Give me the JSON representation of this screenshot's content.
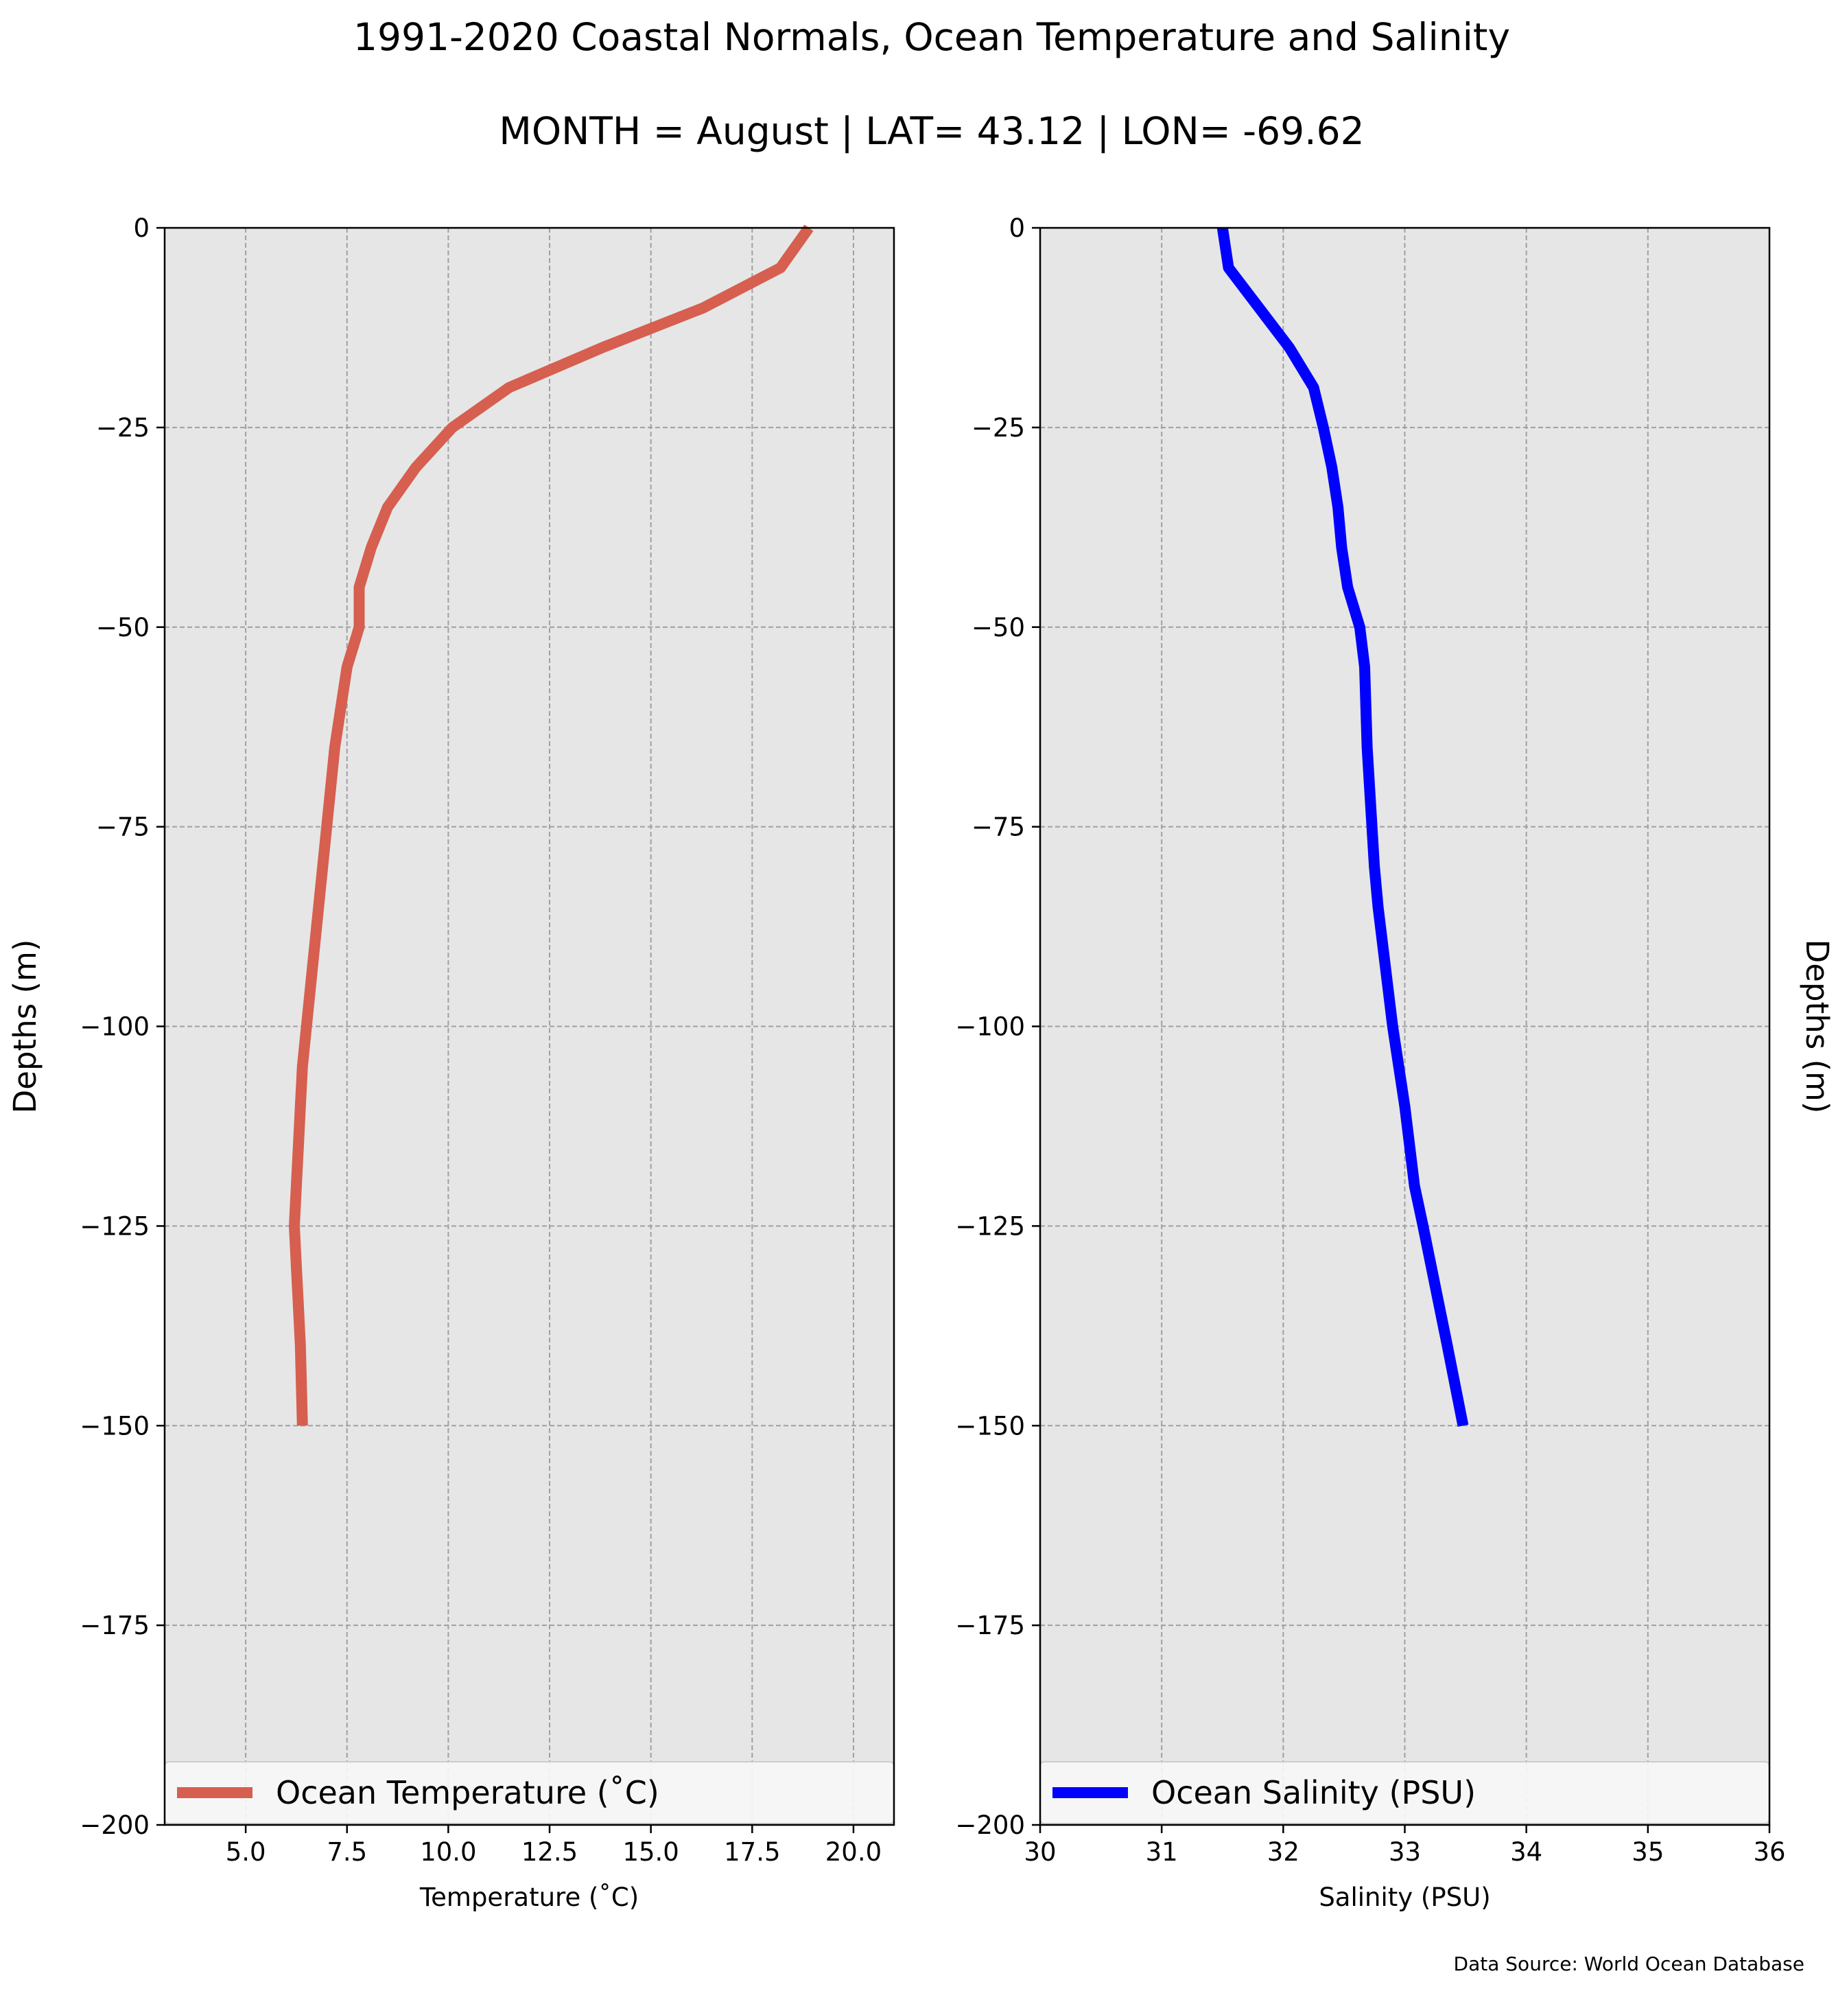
{
  "figure": {
    "title_line1": "1991-2020 Coastal Normals, Ocean Temperature and Salinity",
    "title_line2": "MONTH = August | LAT= 43.12 | LON= -69.62",
    "source_note": "Data Source: World Ocean Database"
  },
  "chart_data": [
    {
      "type": "line",
      "xlabel": "Temperature ($^\\circ$C)",
      "xlabel_display": "Temperature (˚C)",
      "ylabel": "Depths (m)",
      "xlim": [
        3,
        21
      ],
      "ylim": [
        -200,
        0
      ],
      "xticks": [
        5.0,
        7.5,
        10.0,
        12.5,
        15.0,
        17.5,
        20.0
      ],
      "xtick_labels": [
        "5.0",
        "7.5",
        "10.0",
        "12.5",
        "15.0",
        "17.5",
        "20.0"
      ],
      "yticks": [
        0,
        -25,
        -50,
        -75,
        -100,
        -125,
        -150,
        -175,
        -200
      ],
      "ytick_labels": [
        "0",
        "−25",
        "−50",
        "−75",
        "−100",
        "−125",
        "−150",
        "−175",
        "−200"
      ],
      "grid": true,
      "legend_position": "lower-center",
      "background": "#e6e6e6",
      "series": [
        {
          "name": "Ocean Temperature (˚C)",
          "color": "#d65f4f",
          "x": [
            18.9,
            18.2,
            16.3,
            13.8,
            11.5,
            10.1,
            9.2,
            8.5,
            8.1,
            7.8,
            7.8,
            7.5,
            7.2,
            7.0,
            6.8,
            6.6,
            6.5,
            6.4,
            6.35,
            6.3,
            6.25,
            6.2,
            6.25,
            6.3,
            6.35,
            6.4
          ],
          "y": [
            0,
            -5,
            -10,
            -15,
            -20,
            -25,
            -30,
            -35,
            -40,
            -45,
            -50,
            -55,
            -65,
            -75,
            -85,
            -95,
            -100,
            -105,
            -110,
            -115,
            -120,
            -125,
            -130,
            -135,
            -140,
            -150
          ]
        }
      ]
    },
    {
      "type": "line",
      "xlabel": "Salinity (PSU)",
      "ylabel": "Depths (m)",
      "xlim": [
        30,
        36
      ],
      "ylim": [
        -200,
        0
      ],
      "xticks": [
        30,
        31,
        32,
        33,
        34,
        35,
        36
      ],
      "xtick_labels": [
        "30",
        "31",
        "32",
        "33",
        "34",
        "35",
        "36"
      ],
      "yticks": [
        0,
        -25,
        -50,
        -75,
        -100,
        -125,
        -150,
        -175,
        -200
      ],
      "ytick_labels": [
        "0",
        "−25",
        "−50",
        "−75",
        "−100",
        "−125",
        "−150",
        "−175",
        "−200"
      ],
      "grid": true,
      "legend_position": "lower-center",
      "background": "#e6e6e6",
      "series": [
        {
          "name": "Ocean Salinity (PSU)",
          "color": "#0000ff",
          "x": [
            31.5,
            31.55,
            31.8,
            32.05,
            32.25,
            32.33,
            32.4,
            32.45,
            32.48,
            32.53,
            32.63,
            32.67,
            32.69,
            32.71,
            32.75,
            32.78,
            32.82,
            32.86,
            32.9,
            33.0,
            33.08,
            33.15,
            33.35,
            33.48
          ],
          "y": [
            0,
            -5,
            -10,
            -15,
            -20,
            -25,
            -30,
            -35,
            -40,
            -45,
            -50,
            -55,
            -65,
            -70,
            -80,
            -85,
            -90,
            -95,
            -100,
            -110,
            -120,
            -125,
            -140,
            -150
          ]
        }
      ]
    }
  ]
}
